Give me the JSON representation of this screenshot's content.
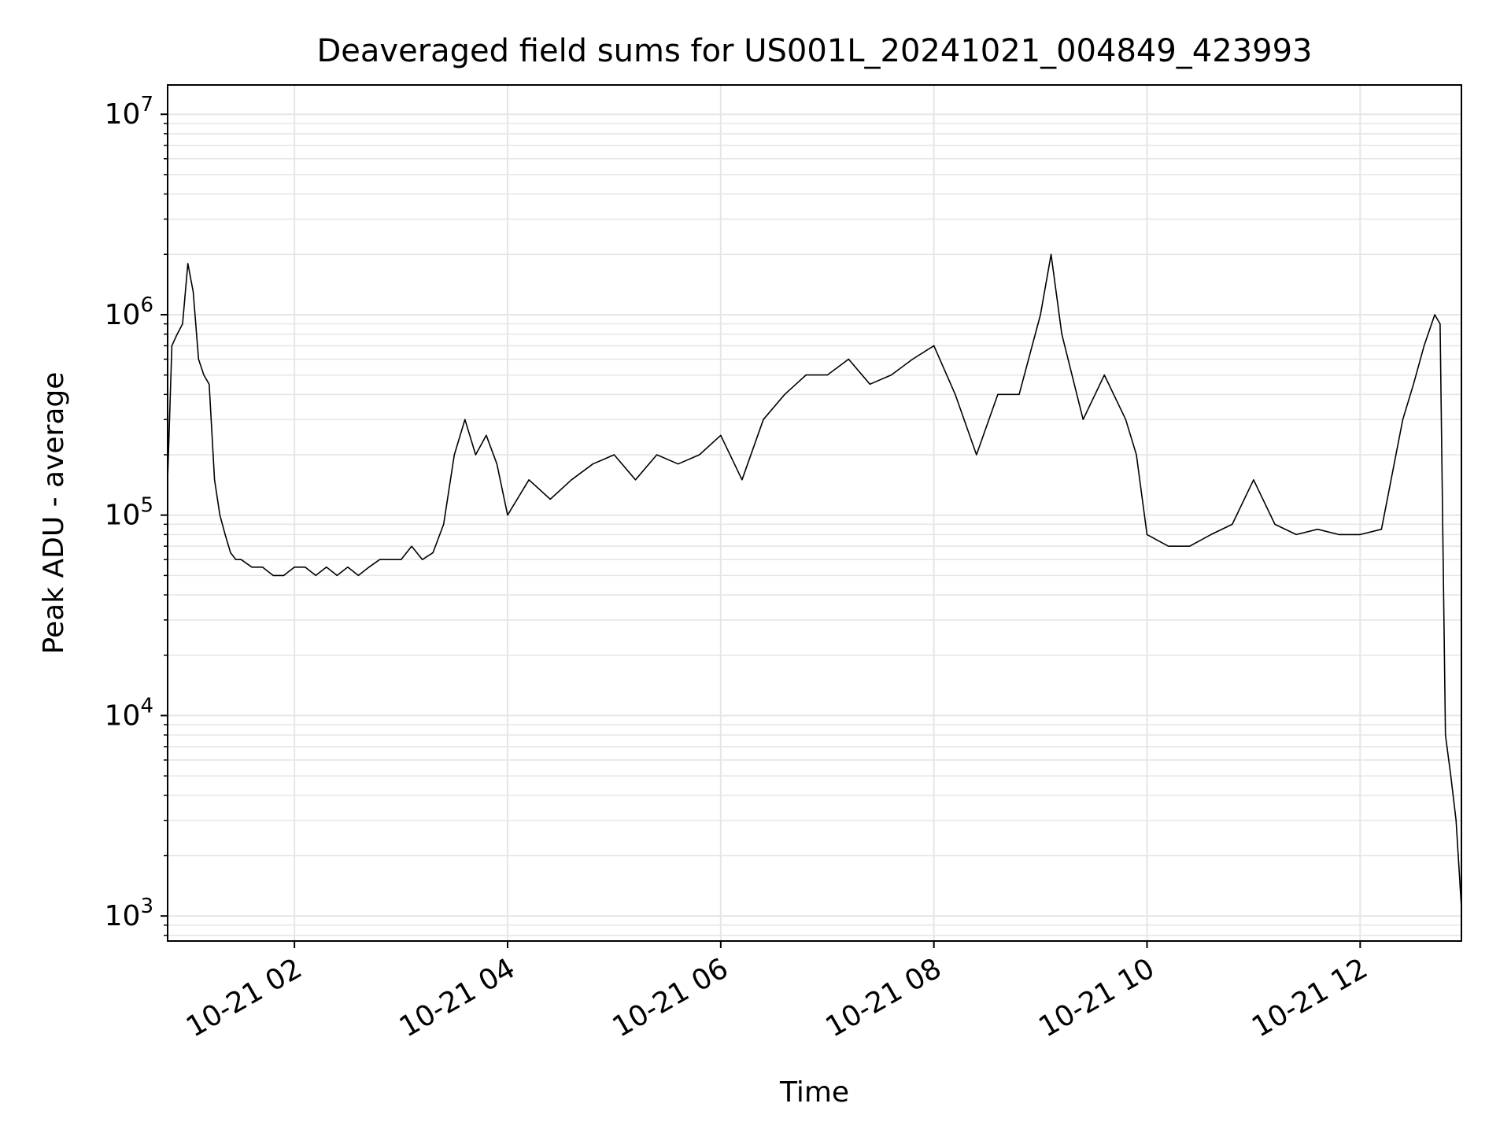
{
  "chart_data": {
    "type": "line",
    "title": "Deaveraged field sums for US001L_20241021_004849_423993",
    "xlabel": "Time",
    "ylabel": "Peak ADU - average",
    "yscale": "log",
    "ylim": [
      750,
      14000000
    ],
    "xlim_hours": [
      0.81,
      12.95
    ],
    "grid": true,
    "legend": "none",
    "line_color": "#000000",
    "grid_color": "#e6e6e6",
    "x_ticks": [
      {
        "hour": 2,
        "label": "10-21 02"
      },
      {
        "hour": 4,
        "label": "10-21 04"
      },
      {
        "hour": 6,
        "label": "10-21 06"
      },
      {
        "hour": 8,
        "label": "10-21 08"
      },
      {
        "hour": 10,
        "label": "10-21 10"
      },
      {
        "hour": 12,
        "label": "10-21 12"
      }
    ],
    "y_ticks": [
      {
        "value": 1000,
        "base": "10",
        "exp": "3"
      },
      {
        "value": 10000,
        "base": "10",
        "exp": "4"
      },
      {
        "value": 100000,
        "base": "10",
        "exp": "5"
      },
      {
        "value": 1000000,
        "base": "10",
        "exp": "6"
      },
      {
        "value": 10000000,
        "base": "10",
        "exp": "7"
      }
    ],
    "series": [
      {
        "x_hours": [
          0.81,
          0.85,
          0.9,
          0.95,
          1.0,
          1.05,
          1.1,
          1.15,
          1.2,
          1.25,
          1.3,
          1.35,
          1.4,
          1.45,
          1.5,
          1.6,
          1.7,
          1.8,
          1.9,
          2.0,
          2.1,
          2.2,
          2.3,
          2.4,
          2.5,
          2.6,
          2.7,
          2.8,
          2.9,
          3.0,
          3.1,
          3.2,
          3.3,
          3.4,
          3.5,
          3.6,
          3.7,
          3.8,
          3.9,
          4.0,
          4.2,
          4.4,
          4.6,
          4.8,
          5.0,
          5.2,
          5.4,
          5.6,
          5.8,
          6.0,
          6.2,
          6.4,
          6.6,
          6.8,
          7.0,
          7.2,
          7.4,
          7.6,
          7.8,
          8.0,
          8.2,
          8.4,
          8.6,
          8.8,
          9.0,
          9.1,
          9.2,
          9.4,
          9.6,
          9.8,
          9.9,
          10.0,
          10.2,
          10.4,
          10.6,
          10.8,
          11.0,
          11.2,
          11.4,
          11.6,
          11.8,
          12.0,
          12.2,
          12.4,
          12.5,
          12.6,
          12.7,
          12.75,
          12.8,
          12.85,
          12.9,
          12.95
        ],
        "y": [
          150000,
          700000,
          800000,
          900000,
          1800000,
          1300000,
          600000,
          500000,
          450000,
          150000,
          100000,
          80000,
          65000,
          60000,
          60000,
          55000,
          55000,
          50000,
          50000,
          55000,
          55000,
          50000,
          55000,
          50000,
          55000,
          50000,
          55000,
          60000,
          60000,
          60000,
          70000,
          60000,
          65000,
          90000,
          200000,
          300000,
          200000,
          250000,
          180000,
          100000,
          150000,
          120000,
          150000,
          180000,
          200000,
          150000,
          200000,
          180000,
          200000,
          250000,
          150000,
          300000,
          400000,
          500000,
          500000,
          600000,
          450000,
          500000,
          600000,
          700000,
          400000,
          200000,
          400000,
          400000,
          1000000,
          2000000,
          800000,
          300000,
          500000,
          300000,
          200000,
          80000,
          70000,
          70000,
          80000,
          90000,
          150000,
          90000,
          80000,
          85000,
          80000,
          80000,
          85000,
          300000,
          450000,
          700000,
          1000000,
          900000,
          8000,
          5000,
          3000,
          1100
        ]
      }
    ]
  }
}
